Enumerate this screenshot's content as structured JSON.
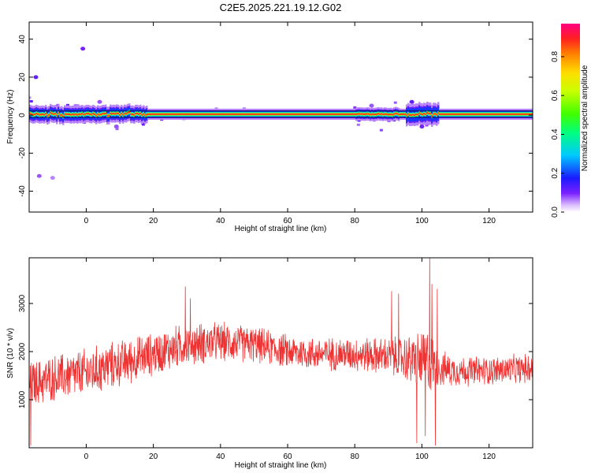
{
  "title": "C2E5.2025.221.19.12.G02",
  "chart_data": [
    {
      "type": "heatmap",
      "title": "C2E5.2025.221.19.12.G02",
      "xlabel": "Height of straight line (km)",
      "ylabel": "Frequency (Hz)",
      "xlim": [
        -17,
        133
      ],
      "ylim": [
        -51,
        49
      ],
      "x_ticks": [
        0,
        20,
        40,
        60,
        80,
        100,
        120
      ],
      "y_ticks": [
        -40,
        -20,
        0,
        20,
        40
      ],
      "colorbar": {
        "label": "Normalized spectral amplitude",
        "range": [
          0,
          0.97
        ],
        "ticks": [
          0.0,
          0.2,
          0.4,
          0.6,
          0.8
        ]
      },
      "main_band": {
        "frequency": 0.5,
        "x_start": -17,
        "x_end": 133
      },
      "blobs": [
        {
          "x": -15,
          "y": 20,
          "v": 0.12
        },
        {
          "x": -1,
          "y": 35,
          "v": 0.1
        },
        {
          "x": -14,
          "y": -32,
          "v": 0.08
        },
        {
          "x": -10,
          "y": -33,
          "v": 0.06
        },
        {
          "x": 4,
          "y": 7,
          "v": 0.08
        },
        {
          "x": 9,
          "y": -6,
          "v": 0.08
        },
        {
          "x": 85,
          "y": 5,
          "v": 0.08
        },
        {
          "x": 97,
          "y": 7,
          "v": 0.12
        },
        {
          "x": 100,
          "y": -6,
          "v": 0.1
        }
      ]
    },
    {
      "type": "line",
      "xlabel": "Height of straight line (km)",
      "ylabel": "SNR (10 * v/v)",
      "xlim": [
        -17,
        133
      ],
      "ylim": [
        0,
        3950
      ],
      "x_ticks": [
        0,
        20,
        40,
        60,
        80,
        100,
        120
      ],
      "y_ticks": [
        1000,
        2000,
        3000
      ],
      "color": "#ee3333",
      "envelope": {
        "x": [
          -17,
          -10,
          0,
          10,
          20,
          30,
          40,
          50,
          60,
          70,
          80,
          90,
          95,
          100,
          102,
          105,
          110,
          120,
          133
        ],
        "mean": [
          1300,
          1450,
          1550,
          1750,
          1950,
          2150,
          2200,
          2150,
          2000,
          1950,
          1950,
          1900,
          1850,
          1800,
          1800,
          1650,
          1600,
          1600,
          1650
        ],
        "spread": [
          450,
          450,
          480,
          450,
          420,
          420,
          380,
          350,
          330,
          320,
          330,
          360,
          450,
          600,
          700,
          350,
          300,
          280,
          280
        ]
      },
      "spikes": [
        {
          "x": -16.5,
          "y": 50
        },
        {
          "x": -16,
          "y": 1700
        },
        {
          "x": 7,
          "y": 2000
        },
        {
          "x": 29.5,
          "y": 3350
        },
        {
          "x": 31,
          "y": 3100
        },
        {
          "x": 91,
          "y": 3250
        },
        {
          "x": 93,
          "y": 3200
        },
        {
          "x": 98.5,
          "y": 100
        },
        {
          "x": 101,
          "y": 250
        },
        {
          "x": 102.3,
          "y": 3950
        },
        {
          "x": 103,
          "y": 3400
        },
        {
          "x": 104,
          "y": 50
        },
        {
          "x": 104.6,
          "y": 3300
        }
      ]
    }
  ]
}
